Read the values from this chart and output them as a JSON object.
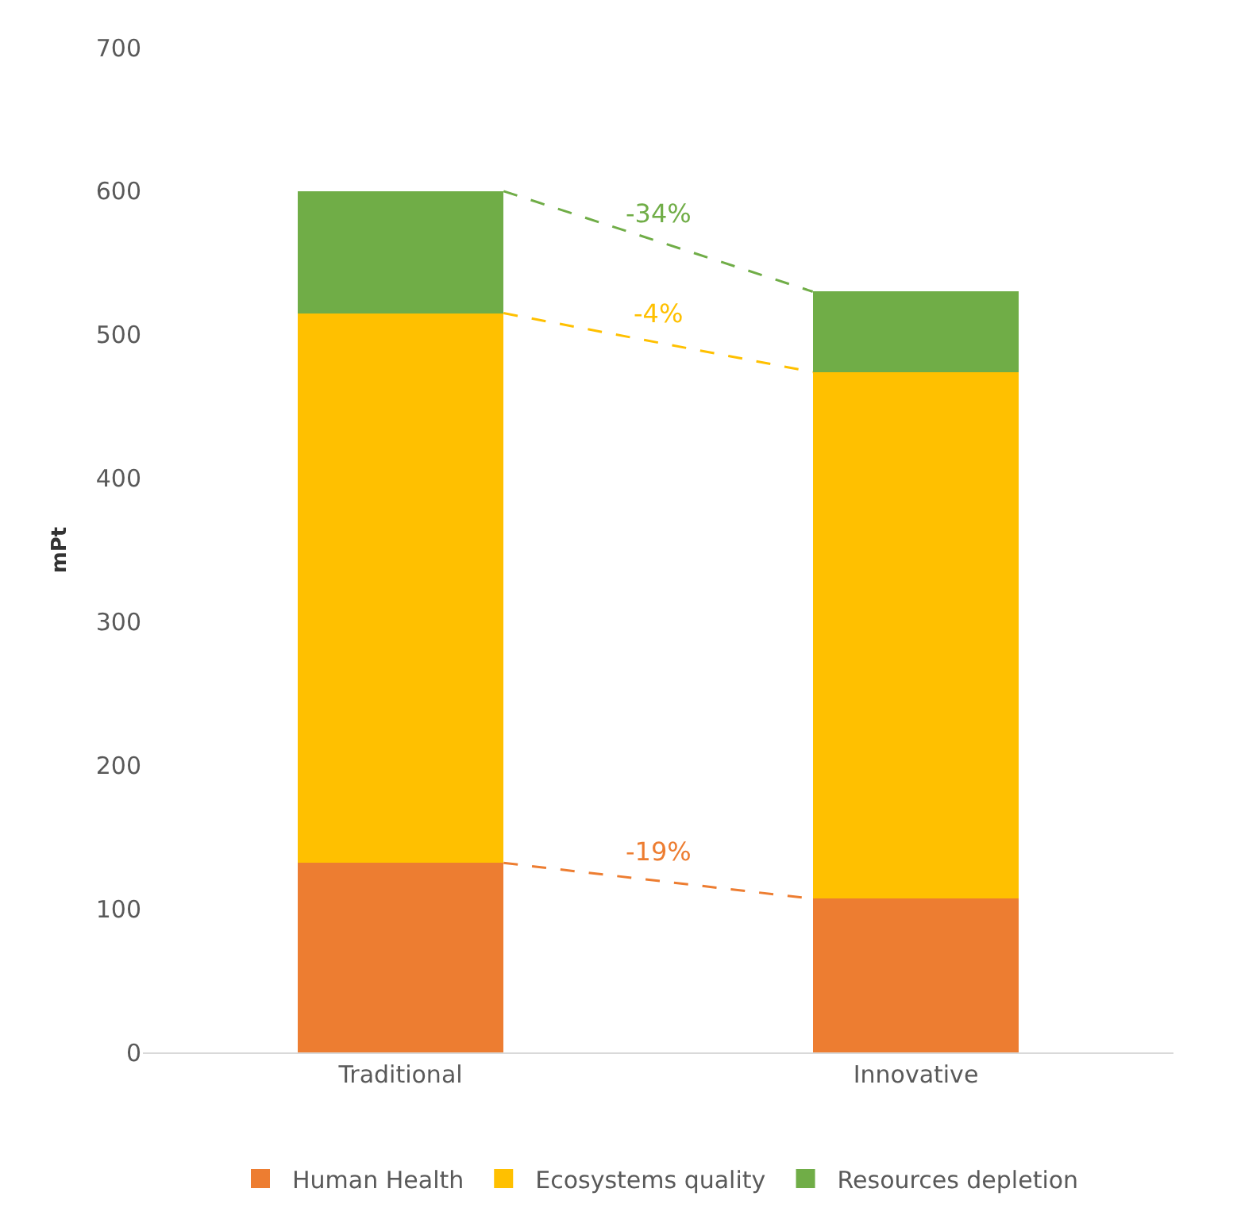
{
  "chart_data": {
    "type": "bar",
    "stacked": true,
    "ylabel": "mPt",
    "categories": [
      "Traditional",
      "Innovative"
    ],
    "series": [
      {
        "name": "Human Health",
        "color": "#ed7d31",
        "values": [
          132,
          107
        ]
      },
      {
        "name": "Ecosystems quality",
        "color": "#ffc000",
        "values": [
          383,
          367
        ]
      },
      {
        "name": "Resources depletion",
        "color": "#70ad47",
        "values": [
          85,
          56
        ]
      }
    ],
    "annotations": [
      "-19%",
      "-4%",
      "-34%"
    ],
    "ylim": [
      0,
      700
    ],
    "yticks": [
      0,
      100,
      200,
      300,
      400,
      500,
      600,
      700
    ],
    "legend": "bottom"
  }
}
